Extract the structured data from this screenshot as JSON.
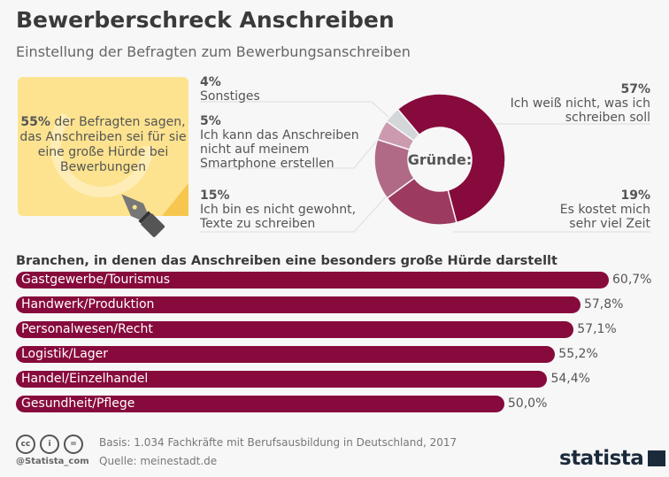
{
  "title": "Bewerberschreck Anschreiben",
  "subtitle": "Einstellung der Befragten zum Bewerbungsanschreiben",
  "note": {
    "highlight": "55%",
    "text": " der Befragten sagen, das Anschreiben sei für sie eine große Hürde bei Bewerbungen"
  },
  "chart_data": [
    {
      "type": "pie",
      "title": "Gründe:",
      "donut": true,
      "slices": [
        {
          "pct": "57%",
          "value": 57,
          "label": "Ich weiß nicht, was ich schreiben soll",
          "color": "#870a3c"
        },
        {
          "pct": "19%",
          "value": 19,
          "label": "Es kostet mich sehr viel Zeit",
          "color": "#9c3a60"
        },
        {
          "pct": "15%",
          "value": 15,
          "label": "Ich bin es nicht gewohnt, Texte zu schreiben",
          "color": "#b06a86"
        },
        {
          "pct": "5%",
          "value": 5,
          "label": "Ich kann das Anschreiben nicht auf meinem Smartphone erstellen",
          "color": "#cc9aae"
        },
        {
          "pct": "4%",
          "value": 4,
          "label": "Sonstiges",
          "color": "#d4d7da"
        }
      ]
    },
    {
      "type": "bar",
      "title": "Branchen, in denen das Anschreiben eine besonders große Hürde darstellt",
      "categories": [
        "Gastgewerbe/Tourismus",
        "Handwerk/Produktion",
        "Personalwesen/Recht",
        "Logistik/Lager",
        "Handel/Einzelhandel",
        "Gesundheit/Pflege"
      ],
      "values": [
        60.7,
        57.8,
        57.1,
        55.2,
        54.4,
        50.0
      ],
      "value_labels": [
        "60,7%",
        "57,8%",
        "57,1%",
        "55,2%",
        "54,4%",
        "50,0%"
      ],
      "color": "#870a3c"
    }
  ],
  "footer": {
    "basis": "Basis: 1.034 Fachkräfte mit Berufsausbildung in Deutschland, 2017",
    "source": "Quelle: meinestadt.de",
    "handle": "@Statista_com",
    "logo": "statista",
    "cc_icons": [
      "cc",
      "i",
      "="
    ]
  }
}
